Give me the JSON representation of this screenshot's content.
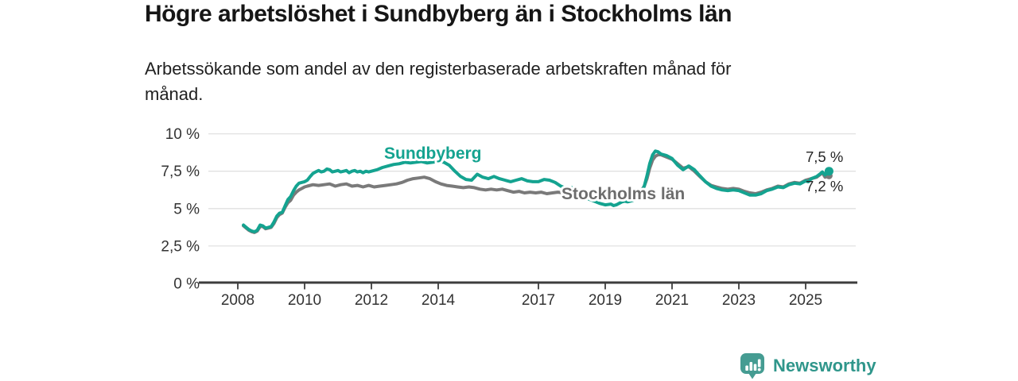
{
  "header": {
    "title": "Högre arbetslöshet i Sundbyberg än i Stockholms län",
    "subtitle": "Arbetssökande som andel av den registerbaserade arbetskraften månad för månad.",
    "subtitle_line1": "Arbetssökande som andel av den registerbaserade arbetskraften månad för",
    "subtitle_line2": "månad."
  },
  "footer": {
    "logo_text": "Newsworthy",
    "logo_color": "#3a9a8f"
  },
  "colors": {
    "accent_teal": "#14a390",
    "series_gray": "#7a7a7a",
    "gridline": "#e1e1e1",
    "axis": "#3d3d3d",
    "tick_text": "#333333"
  },
  "chart_data": {
    "type": "line",
    "title": "Högre arbetslöshet i Sundbyberg än i Stockholms län",
    "subtitle": "Arbetssökande som andel av den registerbaserade arbetskraften månad för månad.",
    "ylabel": "",
    "xlabel": "",
    "ylim": [
      0,
      10
    ],
    "grid": "horizontal",
    "legend_position": "inline-labels",
    "y_axis": {
      "ticks": [
        {
          "v": 0,
          "label": "0 %"
        },
        {
          "v": 2.5,
          "label": "2,5 %"
        },
        {
          "v": 5,
          "label": "5 %"
        },
        {
          "v": 7.5,
          "label": "7,5 %"
        },
        {
          "v": 10,
          "label": "10 %"
        }
      ]
    },
    "x_axis": {
      "ticks": [
        {
          "t": 2008,
          "label": "2008"
        },
        {
          "t": 2010,
          "label": "2010"
        },
        {
          "t": 2012,
          "label": "2012"
        },
        {
          "t": 2014,
          "label": "2014"
        },
        {
          "t": 2017,
          "label": "2017"
        },
        {
          "t": 2019,
          "label": "2019"
        },
        {
          "t": 2021,
          "label": "2021"
        },
        {
          "t": 2023,
          "label": "2023"
        },
        {
          "t": 2025,
          "label": "2025"
        }
      ]
    },
    "series": [
      {
        "name": "Sundbyberg",
        "color": "#14a390",
        "end_label": "7,5 %",
        "end_value": 7.5,
        "points": [
          [
            2008.17,
            3.9
          ],
          [
            2008.25,
            3.75
          ],
          [
            2008.33,
            3.6
          ],
          [
            2008.42,
            3.5
          ],
          [
            2008.5,
            3.45
          ],
          [
            2008.58,
            3.55
          ],
          [
            2008.67,
            3.9
          ],
          [
            2008.75,
            3.85
          ],
          [
            2008.83,
            3.7
          ],
          [
            2008.92,
            3.75
          ],
          [
            2009.0,
            3.8
          ],
          [
            2009.08,
            4.1
          ],
          [
            2009.17,
            4.5
          ],
          [
            2009.25,
            4.7
          ],
          [
            2009.33,
            4.75
          ],
          [
            2009.42,
            5.2
          ],
          [
            2009.5,
            5.6
          ],
          [
            2009.58,
            5.8
          ],
          [
            2009.67,
            6.2
          ],
          [
            2009.75,
            6.5
          ],
          [
            2009.83,
            6.7
          ],
          [
            2009.92,
            6.75
          ],
          [
            2010.0,
            6.8
          ],
          [
            2010.08,
            6.9
          ],
          [
            2010.17,
            7.15
          ],
          [
            2010.25,
            7.35
          ],
          [
            2010.33,
            7.45
          ],
          [
            2010.42,
            7.55
          ],
          [
            2010.5,
            7.45
          ],
          [
            2010.58,
            7.5
          ],
          [
            2010.67,
            7.65
          ],
          [
            2010.75,
            7.6
          ],
          [
            2010.83,
            7.45
          ],
          [
            2010.92,
            7.5
          ],
          [
            2011.0,
            7.55
          ],
          [
            2011.08,
            7.45
          ],
          [
            2011.17,
            7.5
          ],
          [
            2011.25,
            7.55
          ],
          [
            2011.33,
            7.4
          ],
          [
            2011.42,
            7.5
          ],
          [
            2011.5,
            7.55
          ],
          [
            2011.58,
            7.45
          ],
          [
            2011.67,
            7.5
          ],
          [
            2011.75,
            7.4
          ],
          [
            2011.83,
            7.5
          ],
          [
            2011.92,
            7.45
          ],
          [
            2012.0,
            7.5
          ],
          [
            2012.17,
            7.6
          ],
          [
            2012.33,
            7.75
          ],
          [
            2012.5,
            7.85
          ],
          [
            2012.67,
            7.95
          ],
          [
            2012.83,
            8.0
          ],
          [
            2013.0,
            8.1
          ],
          [
            2013.17,
            8.05
          ],
          [
            2013.33,
            8.1
          ],
          [
            2013.5,
            8.15
          ],
          [
            2013.67,
            8.05
          ],
          [
            2013.83,
            8.1
          ],
          [
            2014.0,
            8.15
          ],
          [
            2014.17,
            8.1
          ],
          [
            2014.33,
            7.9
          ],
          [
            2014.5,
            7.5
          ],
          [
            2014.67,
            7.15
          ],
          [
            2014.83,
            6.95
          ],
          [
            2015.0,
            6.9
          ],
          [
            2015.17,
            7.3
          ],
          [
            2015.33,
            7.1
          ],
          [
            2015.5,
            7.0
          ],
          [
            2015.67,
            7.15
          ],
          [
            2015.83,
            7.0
          ],
          [
            2016.0,
            6.9
          ],
          [
            2016.17,
            6.8
          ],
          [
            2016.33,
            6.9
          ],
          [
            2016.5,
            7.0
          ],
          [
            2016.67,
            6.85
          ],
          [
            2016.83,
            6.8
          ],
          [
            2017.0,
            6.8
          ],
          [
            2017.17,
            6.95
          ],
          [
            2017.33,
            6.9
          ],
          [
            2017.5,
            6.75
          ],
          [
            2017.67,
            6.5
          ],
          [
            2017.83,
            6.35
          ],
          [
            2018.0,
            6.4
          ],
          [
            2018.17,
            6.1
          ],
          [
            2018.33,
            5.85
          ],
          [
            2018.5,
            5.65
          ],
          [
            2018.67,
            5.5
          ],
          [
            2018.83,
            5.35
          ],
          [
            2019.0,
            5.25
          ],
          [
            2019.17,
            5.3
          ],
          [
            2019.25,
            5.2
          ],
          [
            2019.33,
            5.25
          ],
          [
            2019.5,
            5.45
          ],
          [
            2019.58,
            5.5
          ],
          [
            2019.67,
            5.45
          ],
          [
            2019.83,
            5.55
          ],
          [
            2020.0,
            5.8
          ],
          [
            2020.08,
            6.1
          ],
          [
            2020.17,
            6.5
          ],
          [
            2020.25,
            7.2
          ],
          [
            2020.33,
            8.0
          ],
          [
            2020.42,
            8.6
          ],
          [
            2020.5,
            8.85
          ],
          [
            2020.58,
            8.8
          ],
          [
            2020.67,
            8.65
          ],
          [
            2020.83,
            8.55
          ],
          [
            2021.0,
            8.35
          ],
          [
            2021.17,
            7.9
          ],
          [
            2021.33,
            7.6
          ],
          [
            2021.5,
            7.85
          ],
          [
            2021.67,
            7.6
          ],
          [
            2021.83,
            7.2
          ],
          [
            2022.0,
            6.8
          ],
          [
            2022.17,
            6.5
          ],
          [
            2022.33,
            6.35
          ],
          [
            2022.5,
            6.25
          ],
          [
            2022.67,
            6.2
          ],
          [
            2022.83,
            6.25
          ],
          [
            2023.0,
            6.2
          ],
          [
            2023.17,
            6.05
          ],
          [
            2023.33,
            5.9
          ],
          [
            2023.5,
            5.9
          ],
          [
            2023.67,
            6.0
          ],
          [
            2023.83,
            6.2
          ],
          [
            2024.0,
            6.3
          ],
          [
            2024.17,
            6.45
          ],
          [
            2024.33,
            6.4
          ],
          [
            2024.5,
            6.6
          ],
          [
            2024.67,
            6.7
          ],
          [
            2024.83,
            6.65
          ],
          [
            2025.0,
            6.85
          ],
          [
            2025.08,
            6.8
          ],
          [
            2025.17,
            7.0
          ],
          [
            2025.33,
            7.15
          ],
          [
            2025.42,
            7.3
          ],
          [
            2025.5,
            7.45
          ],
          [
            2025.58,
            7.25
          ],
          [
            2025.7,
            7.5
          ]
        ]
      },
      {
        "name": "Stockholms län",
        "color": "#7a7a7a",
        "end_label": "7,2 %",
        "end_value": 7.2,
        "points": [
          [
            2008.17,
            3.85
          ],
          [
            2008.25,
            3.7
          ],
          [
            2008.33,
            3.55
          ],
          [
            2008.42,
            3.45
          ],
          [
            2008.5,
            3.4
          ],
          [
            2008.58,
            3.5
          ],
          [
            2008.67,
            3.8
          ],
          [
            2008.75,
            3.8
          ],
          [
            2008.83,
            3.65
          ],
          [
            2008.92,
            3.7
          ],
          [
            2009.0,
            3.75
          ],
          [
            2009.08,
            4.0
          ],
          [
            2009.17,
            4.4
          ],
          [
            2009.25,
            4.6
          ],
          [
            2009.33,
            4.7
          ],
          [
            2009.42,
            5.1
          ],
          [
            2009.5,
            5.4
          ],
          [
            2009.58,
            5.55
          ],
          [
            2009.67,
            5.9
          ],
          [
            2009.75,
            6.1
          ],
          [
            2009.83,
            6.25
          ],
          [
            2009.92,
            6.35
          ],
          [
            2010.0,
            6.45
          ],
          [
            2010.08,
            6.5
          ],
          [
            2010.25,
            6.6
          ],
          [
            2010.42,
            6.55
          ],
          [
            2010.58,
            6.6
          ],
          [
            2010.75,
            6.65
          ],
          [
            2010.92,
            6.5
          ],
          [
            2011.08,
            6.6
          ],
          [
            2011.25,
            6.65
          ],
          [
            2011.42,
            6.5
          ],
          [
            2011.58,
            6.55
          ],
          [
            2011.75,
            6.45
          ],
          [
            2011.92,
            6.55
          ],
          [
            2012.08,
            6.45
          ],
          [
            2012.25,
            6.5
          ],
          [
            2012.42,
            6.55
          ],
          [
            2012.58,
            6.6
          ],
          [
            2012.75,
            6.65
          ],
          [
            2012.92,
            6.75
          ],
          [
            2013.08,
            6.9
          ],
          [
            2013.25,
            7.0
          ],
          [
            2013.42,
            7.05
          ],
          [
            2013.58,
            7.1
          ],
          [
            2013.75,
            7.0
          ],
          [
            2013.92,
            6.8
          ],
          [
            2014.08,
            6.65
          ],
          [
            2014.25,
            6.55
          ],
          [
            2014.42,
            6.5
          ],
          [
            2014.58,
            6.45
          ],
          [
            2014.75,
            6.4
          ],
          [
            2014.92,
            6.45
          ],
          [
            2015.08,
            6.4
          ],
          [
            2015.25,
            6.3
          ],
          [
            2015.42,
            6.25
          ],
          [
            2015.58,
            6.3
          ],
          [
            2015.75,
            6.25
          ],
          [
            2015.92,
            6.3
          ],
          [
            2016.08,
            6.2
          ],
          [
            2016.25,
            6.1
          ],
          [
            2016.42,
            6.15
          ],
          [
            2016.58,
            6.05
          ],
          [
            2016.75,
            6.1
          ],
          [
            2016.92,
            6.05
          ],
          [
            2017.08,
            6.1
          ],
          [
            2017.25,
            6.0
          ],
          [
            2017.42,
            6.05
          ],
          [
            2017.58,
            6.1
          ],
          [
            2017.75,
            6.05
          ],
          [
            2017.92,
            6.1
          ],
          [
            2018.08,
            6.05
          ],
          [
            2018.25,
            6.1
          ],
          [
            2018.42,
            6.0
          ],
          [
            2018.58,
            5.95
          ],
          [
            2018.75,
            5.95
          ],
          [
            2018.92,
            5.9
          ],
          [
            2019.08,
            5.85
          ],
          [
            2019.25,
            5.8
          ],
          [
            2019.42,
            5.85
          ],
          [
            2019.58,
            5.8
          ],
          [
            2019.75,
            5.85
          ],
          [
            2019.92,
            5.95
          ],
          [
            2020.0,
            6.05
          ],
          [
            2020.08,
            6.2
          ],
          [
            2020.17,
            6.5
          ],
          [
            2020.25,
            7.0
          ],
          [
            2020.33,
            7.7
          ],
          [
            2020.42,
            8.25
          ],
          [
            2020.5,
            8.5
          ],
          [
            2020.58,
            8.6
          ],
          [
            2020.67,
            8.6
          ],
          [
            2020.83,
            8.45
          ],
          [
            2021.0,
            8.3
          ],
          [
            2021.17,
            8.0
          ],
          [
            2021.33,
            7.7
          ],
          [
            2021.5,
            7.8
          ],
          [
            2021.67,
            7.5
          ],
          [
            2021.83,
            7.15
          ],
          [
            2022.0,
            6.8
          ],
          [
            2022.17,
            6.55
          ],
          [
            2022.33,
            6.45
          ],
          [
            2022.5,
            6.35
          ],
          [
            2022.67,
            6.3
          ],
          [
            2022.83,
            6.35
          ],
          [
            2023.0,
            6.3
          ],
          [
            2023.17,
            6.15
          ],
          [
            2023.33,
            6.05
          ],
          [
            2023.5,
            6.0
          ],
          [
            2023.67,
            6.1
          ],
          [
            2023.83,
            6.25
          ],
          [
            2024.0,
            6.35
          ],
          [
            2024.17,
            6.5
          ],
          [
            2024.33,
            6.45
          ],
          [
            2024.5,
            6.65
          ],
          [
            2024.67,
            6.75
          ],
          [
            2024.83,
            6.7
          ],
          [
            2025.0,
            6.9
          ],
          [
            2025.17,
            7.0
          ],
          [
            2025.33,
            7.1
          ],
          [
            2025.42,
            7.25
          ],
          [
            2025.5,
            7.4
          ],
          [
            2025.58,
            7.1
          ],
          [
            2025.7,
            7.2
          ]
        ]
      }
    ]
  }
}
